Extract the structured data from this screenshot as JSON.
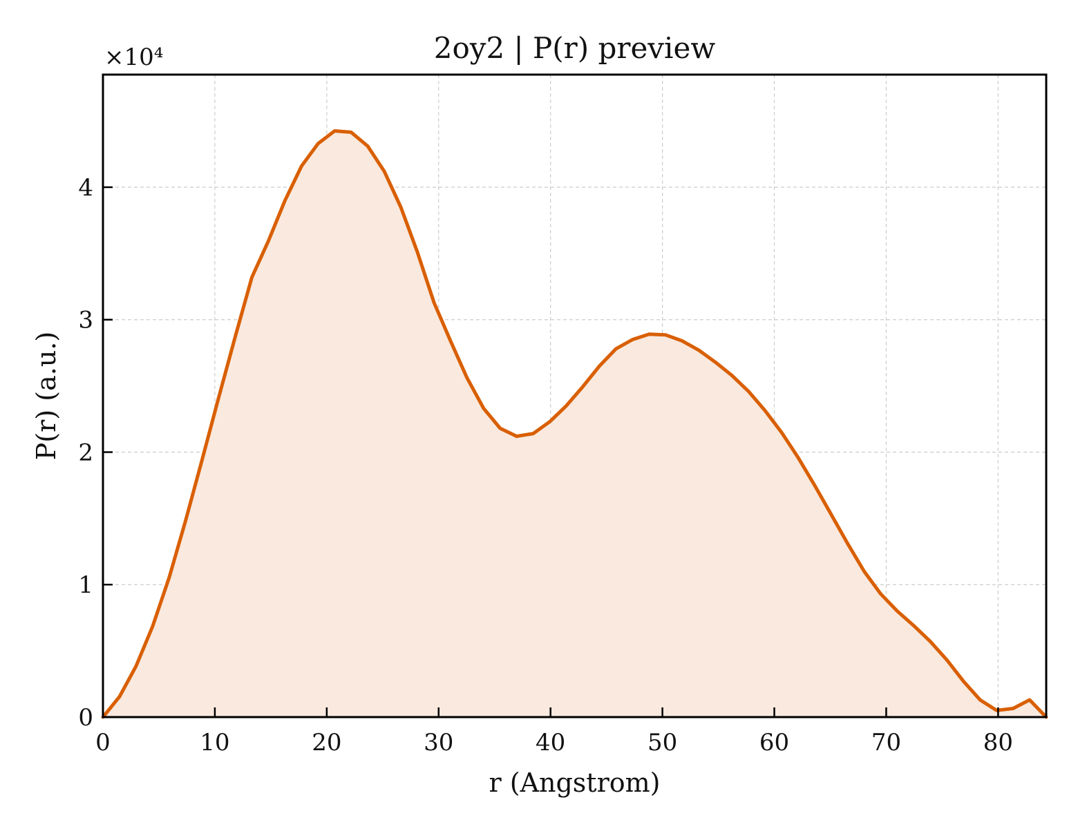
{
  "colors": {
    "line": "#d95f02",
    "fill": "#f9e9df",
    "grid": "#cccccc",
    "axes": "#000000",
    "background": "#ffffff"
  },
  "chart_data": {
    "type": "area",
    "title": "2oy2 | P(r) preview",
    "xlabel": "r (Angstrom)",
    "ylabel": "P(r) (a.u.)",
    "y_offset_label": "×10⁴",
    "xlim": [
      0,
      84.3
    ],
    "ylim": [
      0,
      48500
    ],
    "grid": true,
    "legend": "none",
    "xticks": [
      0,
      10,
      20,
      30,
      40,
      50,
      60,
      70,
      80
    ],
    "xtick_labels": [
      "0",
      "10",
      "20",
      "30",
      "40",
      "50",
      "60",
      "70",
      "80"
    ],
    "yticks": [
      0,
      10000,
      20000,
      30000,
      40000
    ],
    "ytick_labels": [
      "0",
      "1",
      "2",
      "3",
      "4"
    ],
    "series": [
      {
        "x": [
          0,
          1.48,
          2.96,
          4.44,
          5.92,
          7.39,
          8.87,
          10.35,
          11.83,
          13.31,
          14.79,
          16.27,
          17.75,
          19.23,
          20.71,
          22.18,
          23.66,
          25.14,
          26.62,
          28.1,
          29.58,
          31.06,
          32.54,
          34.02,
          35.5,
          36.97,
          38.45,
          39.93,
          41.41,
          42.89,
          44.37,
          45.85,
          47.33,
          48.81,
          50.29,
          51.76,
          53.24,
          54.72,
          56.2,
          57.68,
          59.16,
          60.64,
          62.12,
          63.6,
          65.08,
          66.55,
          68.03,
          69.51,
          70.99,
          72.47,
          73.95,
          75.43,
          76.91,
          78.39,
          79.87,
          81.34,
          82.82,
          84.3
        ],
        "y": [
          0,
          1550,
          3850,
          6850,
          10550,
          14850,
          19450,
          24150,
          28750,
          33200,
          35950,
          39000,
          41600,
          43300,
          44250,
          44150,
          43100,
          41200,
          38500,
          35100,
          31300,
          28400,
          25600,
          23300,
          21800,
          21200,
          21400,
          22300,
          23500,
          24950,
          26500,
          27800,
          28500,
          28900,
          28850,
          28400,
          27700,
          26800,
          25800,
          24600,
          23150,
          21500,
          19600,
          17500,
          15300,
          13100,
          11000,
          9300,
          8000,
          6900,
          5700,
          4300,
          2700,
          1300,
          500,
          650,
          1300,
          0
        ]
      }
    ]
  }
}
